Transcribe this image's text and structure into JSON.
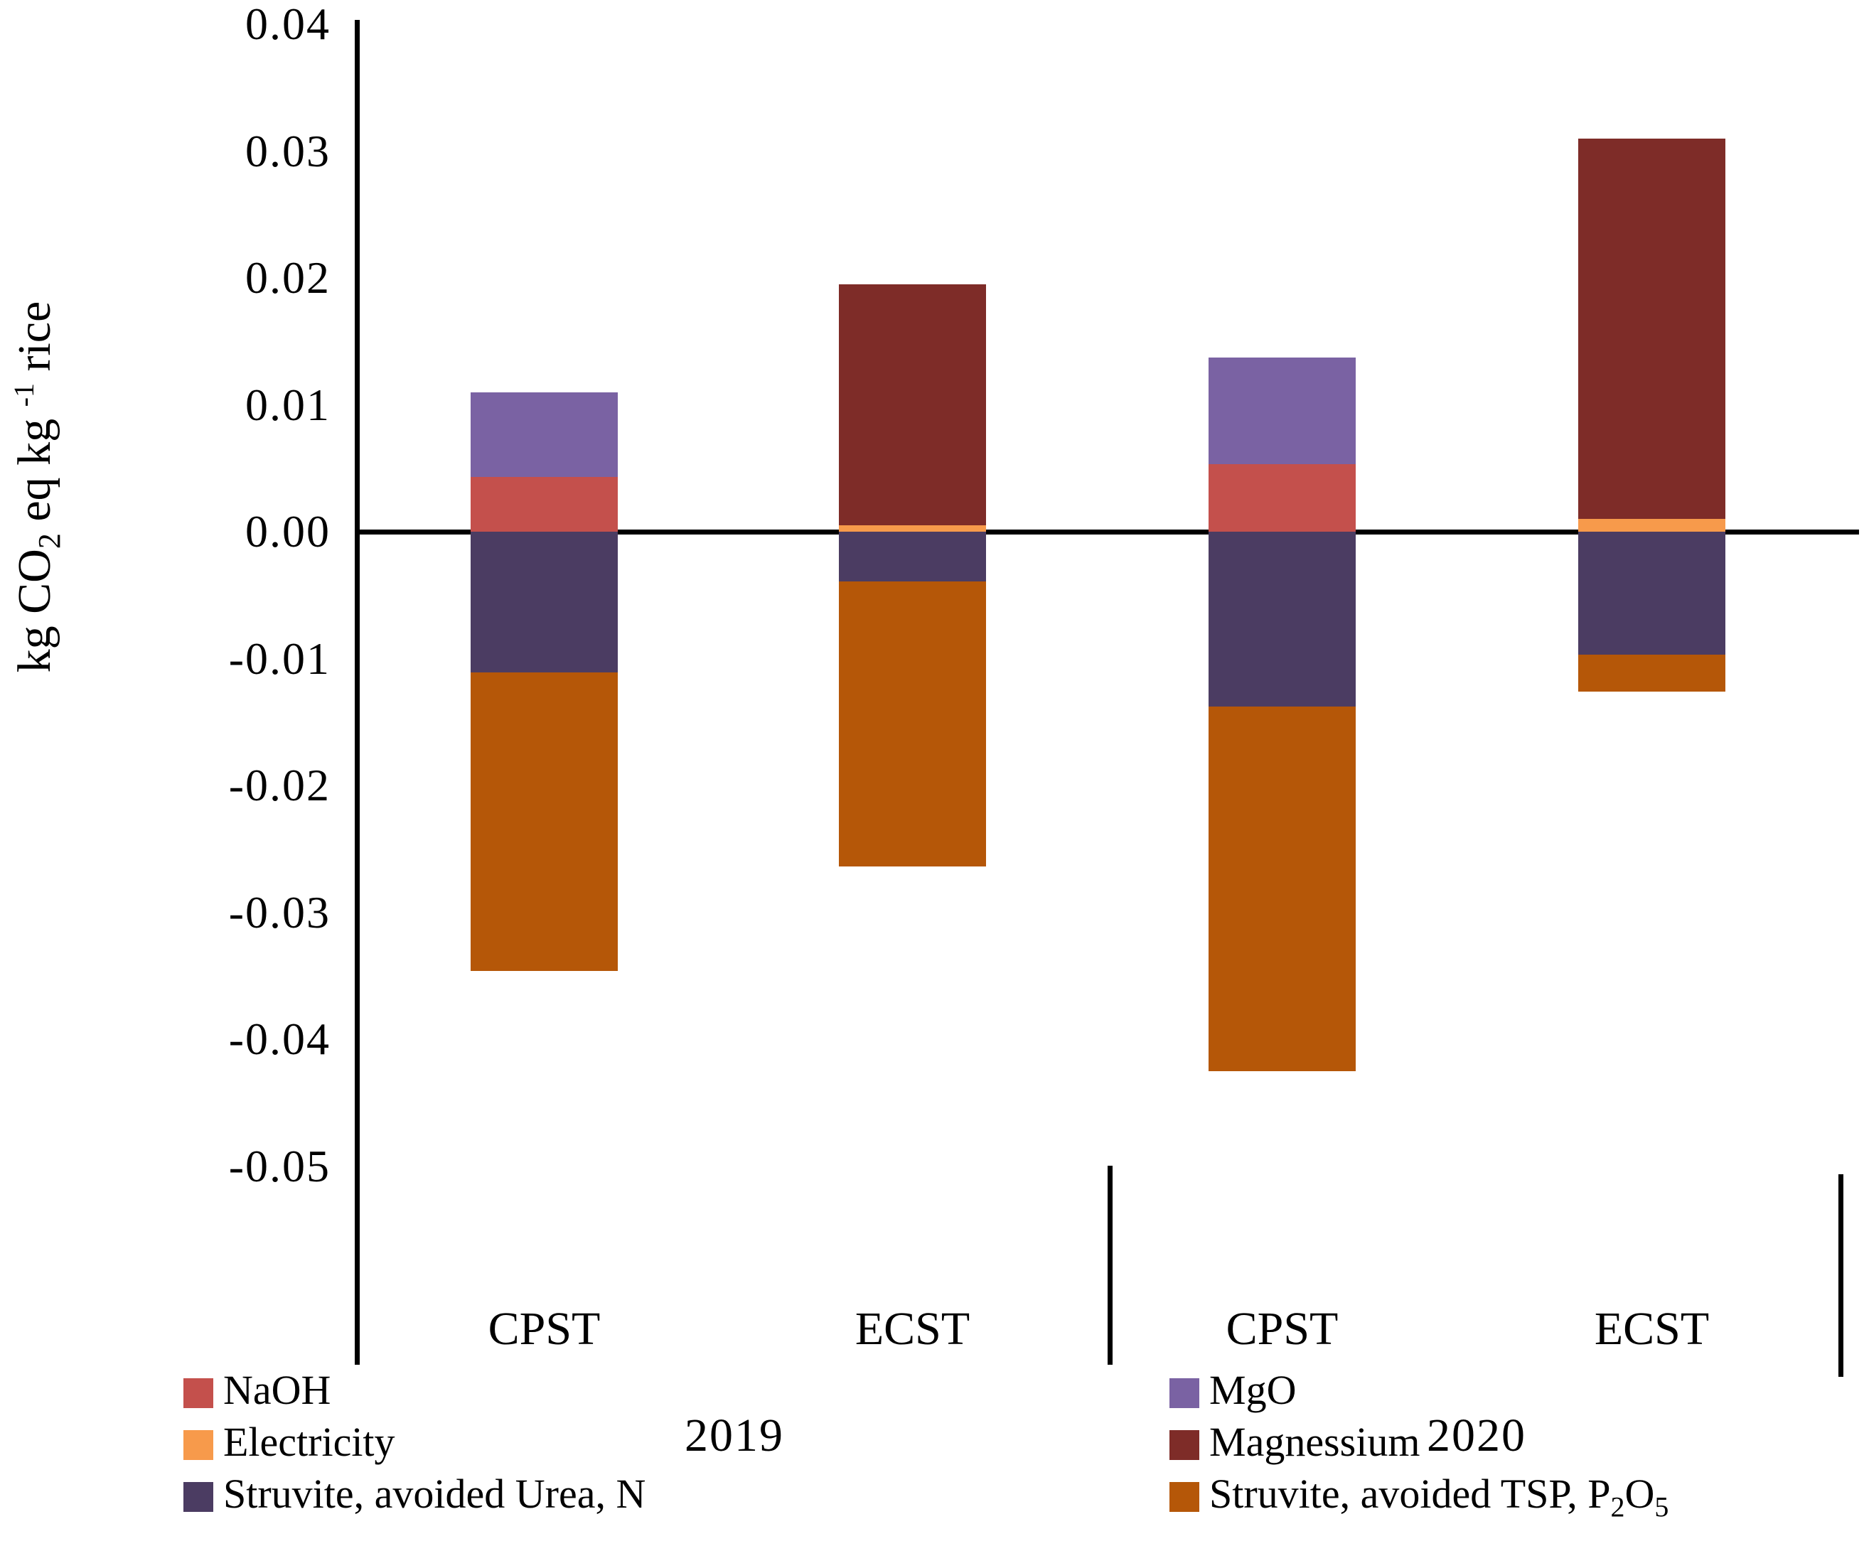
{
  "axis_title": {
    "pre": "kg CO",
    "sub": "2",
    "mid": " eq kg ",
    "sup": "-1",
    "post": " rice"
  },
  "chart_data": {
    "type": "bar",
    "stacked": true,
    "title": "",
    "xlabel": "",
    "ylabel": "kg CO2 eq kg-1 rice",
    "ylim": [
      -0.05,
      0.04
    ],
    "ytick_step": 0.01,
    "y_ticks": [
      "0.04",
      "0.03",
      "0.02",
      "0.01",
      "0.00",
      "-0.01",
      "-0.02",
      "-0.03",
      "-0.04",
      "-0.05"
    ],
    "grid": false,
    "legend_position": "bottom",
    "groups": [
      "2019",
      "2020"
    ],
    "categories": [
      "CPST",
      "ECST",
      "CPST",
      "ECST"
    ],
    "series": [
      {
        "name": "NaOH",
        "color": "#C4504C",
        "values": [
          0.0043,
          0,
          0.0053,
          0
        ]
      },
      {
        "name": "Electricity",
        "color": "#F79A4B",
        "values": [
          0,
          0.0005,
          0,
          0.001
        ]
      },
      {
        "name": "MgO",
        "color": "#7A62A3",
        "values": [
          0.0067,
          0,
          0.0084,
          0
        ]
      },
      {
        "name": "Magnessium",
        "color": "#7E2C28",
        "values": [
          0,
          0.019,
          0,
          0.03
        ]
      },
      {
        "name": "Struvite, avoided Urea, N",
        "color": "#4B3C62",
        "values": [
          -0.0111,
          -0.0039,
          -0.0138,
          -0.0097
        ]
      },
      {
        "name": "Struvite, avoided TSP, P2O5",
        "color": "#B55708",
        "values": [
          -0.0235,
          -0.0225,
          -0.0287,
          -0.0029
        ]
      }
    ]
  },
  "legend": {
    "left": [
      {
        "pre": "NaOH",
        "sub1": "",
        "mid": "",
        "sub2": "",
        "color": "#C4504C"
      },
      {
        "pre": "Electricity",
        "sub1": "",
        "mid": "",
        "sub2": "",
        "color": "#F79A4B"
      },
      {
        "pre": "Struvite, avoided Urea, N",
        "sub1": "",
        "mid": "",
        "sub2": "",
        "color": "#4B3C62"
      }
    ],
    "right": [
      {
        "pre": "MgO",
        "sub1": "",
        "mid": "",
        "sub2": "",
        "color": "#7A62A3"
      },
      {
        "pre": "Magnessium",
        "sub1": "",
        "mid": "",
        "sub2": "",
        "color": "#7E2C28"
      },
      {
        "pre": "Struvite, avoided TSP, P",
        "sub1": "2",
        "mid": "O",
        "sub2": "5",
        "color": "#B55708"
      }
    ]
  }
}
